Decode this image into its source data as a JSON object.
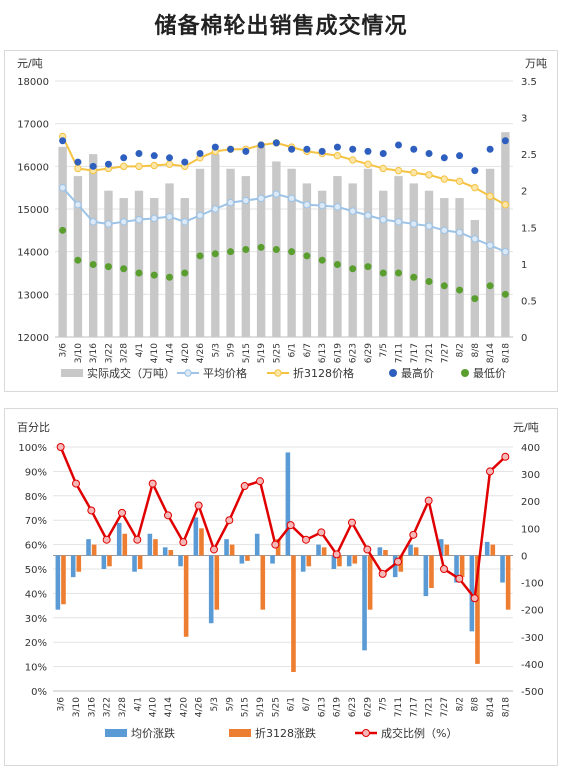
{
  "page": {
    "title": "储备棉轮出销售成交情况"
  },
  "colors": {
    "volume_bar": "#c8c8c8",
    "avg_price": "#9dc3e6",
    "avg_price_marker_fill": "#dbe9f7",
    "p3128": "#f5c342",
    "p3128_marker_fill": "#fbe6a8",
    "max_price": "#2e5fbf",
    "min_price": "#5a9e2f",
    "avg_change": "#5b9bd5",
    "p3128_change": "#ed7d31",
    "ratio_line": "#e00000",
    "ratio_marker_fill": "#f4b8b8"
  },
  "chart_data": [
    {
      "type": "bar+line",
      "title": "",
      "ylabel_left": "元/吨",
      "ylabel_right": "万吨",
      "ylim_left": [
        12000,
        18000
      ],
      "ylim_right": [
        0,
        3.5
      ],
      "yticks_left": [
        "12000",
        "13000",
        "14000",
        "15000",
        "16000",
        "17000",
        "18000"
      ],
      "yticks_right": [
        "0",
        "0.5",
        "1",
        "1.5",
        "2",
        "2.5",
        "3",
        "3.5"
      ],
      "categories": [
        "3/6",
        "3/10",
        "3/16",
        "3/22",
        "3/28",
        "4/1",
        "4/10",
        "4/14",
        "4/20",
        "4/26",
        "5/3",
        "5/9",
        "5/15",
        "5/19",
        "5/25",
        "6/1",
        "6/7",
        "6/13",
        "6/19",
        "6/23",
        "6/29",
        "7/5",
        "7/11",
        "7/17",
        "7/21",
        "7/27",
        "8/2",
        "8/8",
        "8/14",
        "8/18"
      ],
      "legend": [
        {
          "key": "volume",
          "label": "实际成交（万吨）"
        },
        {
          "key": "avg",
          "label": "平均价格"
        },
        {
          "key": "p3128",
          "label": "折3128价格"
        },
        {
          "key": "max",
          "label": "最高价"
        },
        {
          "key": "min",
          "label": "最低价"
        }
      ],
      "series": [
        {
          "key": "volume",
          "name": "实际成交（万吨）",
          "axis": "right",
          "kind": "bar",
          "values": [
            2.6,
            2.2,
            2.5,
            2.0,
            1.9,
            2.0,
            1.9,
            2.1,
            1.9,
            2.3,
            2.5,
            2.3,
            2.2,
            2.6,
            2.4,
            2.3,
            2.1,
            2.0,
            2.2,
            2.1,
            2.3,
            2.0,
            2.2,
            2.1,
            2.0,
            1.9,
            1.9,
            1.6,
            2.3,
            2.8
          ]
        },
        {
          "key": "avg",
          "name": "平均价格",
          "axis": "left",
          "kind": "line",
          "values": [
            15500,
            15100,
            14700,
            14650,
            14700,
            14750,
            14780,
            14820,
            14700,
            14850,
            15000,
            15150,
            15200,
            15250,
            15350,
            15250,
            15100,
            15080,
            15050,
            14950,
            14850,
            14750,
            14700,
            14650,
            14600,
            14500,
            14450,
            14300,
            14150,
            14000
          ]
        },
        {
          "key": "p3128",
          "name": "折3128价格",
          "axis": "left",
          "kind": "line",
          "values": [
            16700,
            15950,
            15900,
            15950,
            16000,
            16000,
            16020,
            16050,
            16000,
            16200,
            16350,
            16400,
            16400,
            16500,
            16550,
            16450,
            16350,
            16300,
            16250,
            16150,
            16050,
            15950,
            15900,
            15850,
            15800,
            15700,
            15650,
            15500,
            15300,
            15100
          ]
        },
        {
          "key": "max",
          "name": "最高价",
          "axis": "left",
          "kind": "scatter",
          "values": [
            16600,
            16100,
            16000,
            16050,
            16200,
            16300,
            16250,
            16200,
            16100,
            16300,
            16450,
            16400,
            16350,
            16500,
            16550,
            16400,
            16400,
            16350,
            16450,
            16400,
            16350,
            16300,
            16500,
            16400,
            16300,
            16200,
            16250,
            15900,
            16400,
            16600
          ]
        },
        {
          "key": "min",
          "name": "最低价",
          "axis": "left",
          "kind": "scatter",
          "values": [
            14500,
            13800,
            13700,
            13650,
            13600,
            13500,
            13450,
            13400,
            13500,
            13900,
            13950,
            14000,
            14050,
            14100,
            14050,
            14000,
            13900,
            13800,
            13700,
            13600,
            13650,
            13500,
            13500,
            13400,
            13300,
            13200,
            13100,
            12900,
            13200,
            13000
          ]
        }
      ]
    },
    {
      "type": "bar+line",
      "title": "",
      "ylabel_left": "百分比",
      "ylabel_right": "元/吨",
      "ylim_left": [
        0,
        100
      ],
      "ylim_right": [
        -500,
        400
      ],
      "yticks_left": [
        "0%",
        "10%",
        "20%",
        "30%",
        "40%",
        "50%",
        "60%",
        "70%",
        "80%",
        "90%",
        "100%"
      ],
      "yticks_right": [
        "-500",
        "-400",
        "-300",
        "-200",
        "-100",
        "0",
        "100",
        "200",
        "300",
        "400"
      ],
      "categories": [
        "3/6",
        "3/10",
        "3/16",
        "3/22",
        "3/28",
        "4/1",
        "4/10",
        "4/14",
        "4/20",
        "4/26",
        "5/3",
        "5/9",
        "5/15",
        "5/19",
        "5/25",
        "6/1",
        "6/7",
        "6/13",
        "6/19",
        "6/23",
        "6/29",
        "7/5",
        "7/11",
        "7/17",
        "7/21",
        "7/27",
        "8/2",
        "8/8",
        "8/14",
        "8/18"
      ],
      "legend": [
        {
          "key": "avg_change",
          "label": "均价涨跌"
        },
        {
          "key": "p3128_change",
          "label": "折3128涨跌"
        },
        {
          "key": "ratio",
          "label": "成交比例（%）"
        }
      ],
      "series": [
        {
          "key": "avg_change",
          "name": "均价涨跌",
          "axis": "right",
          "kind": "bar",
          "values": [
            -200,
            -80,
            60,
            -50,
            120,
            -60,
            80,
            30,
            -40,
            140,
            -250,
            60,
            -30,
            80,
            -30,
            380,
            -60,
            40,
            -50,
            -40,
            -350,
            30,
            -80,
            40,
            -150,
            60,
            -100,
            -280,
            50,
            -100
          ]
        },
        {
          "key": "p3128_change",
          "name": "折3128涨跌",
          "axis": "right",
          "kind": "bar",
          "values": [
            -180,
            -60,
            40,
            -40,
            80,
            -50,
            60,
            20,
            -300,
            100,
            -200,
            40,
            -20,
            -200,
            60,
            -430,
            -40,
            30,
            -40,
            -30,
            -200,
            20,
            -60,
            30,
            -120,
            40,
            -80,
            -400,
            40,
            -200
          ]
        },
        {
          "key": "ratio",
          "name": "成交比例（%）",
          "axis": "left",
          "kind": "line",
          "values": [
            100,
            85,
            74,
            62,
            73,
            62,
            85,
            72,
            61,
            76,
            58,
            70,
            84,
            86,
            60,
            68,
            62,
            65,
            56,
            69,
            58,
            48,
            53,
            64,
            78,
            50,
            46,
            38,
            90,
            96
          ]
        }
      ]
    }
  ]
}
